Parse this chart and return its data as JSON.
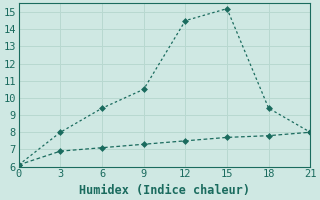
{
  "xlabel": "Humidex (Indice chaleur)",
  "background_color": "#cfe8e3",
  "line1_x": [
    0,
    3,
    6,
    9,
    12,
    15,
    18,
    21
  ],
  "line1_y": [
    6.1,
    6.9,
    7.1,
    7.3,
    7.5,
    7.7,
    7.8,
    8.0
  ],
  "line2_x": [
    0,
    3,
    6,
    9,
    12,
    15,
    18,
    21
  ],
  "line2_y": [
    6.1,
    8.0,
    9.4,
    10.5,
    14.5,
    15.2,
    9.4,
    8.0
  ],
  "line_color": "#1a6b5e",
  "markersize": 3.5,
  "xlim": [
    0,
    21
  ],
  "ylim": [
    6,
    15.5
  ],
  "xticks": [
    0,
    3,
    6,
    9,
    12,
    15,
    18,
    21
  ],
  "yticks": [
    6,
    7,
    8,
    9,
    10,
    11,
    12,
    13,
    14,
    15
  ],
  "grid_color": "#b8d8d0",
  "tick_fontsize": 7.5,
  "xlabel_fontsize": 8.5
}
